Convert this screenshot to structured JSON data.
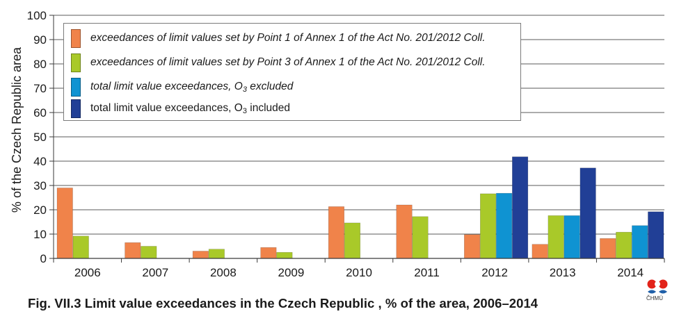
{
  "chart_data": {
    "type": "bar",
    "categories": [
      "2006",
      "2007",
      "2008",
      "2009",
      "2010",
      "2011",
      "2012",
      "2013",
      "2014"
    ],
    "ylabel": "% of the Czech Republic area",
    "ylim": [
      0,
      100
    ],
    "yticks": [
      0,
      10,
      20,
      30,
      40,
      50,
      60,
      70,
      80,
      90,
      100
    ],
    "grid": true,
    "legend_position": "top-left",
    "series": [
      {
        "name": "exceedances of limit values set by Point 1 of Annex 1 of the Act No. 201/2012 Coll.",
        "color": "#f0834a",
        "italic": true,
        "values": [
          29.0,
          6.5,
          3.0,
          4.5,
          21.3,
          22.0,
          9.8,
          5.8,
          8.2
        ]
      },
      {
        "name": "exceedances of limit values set by Point 3 of Annex 1 of the Act No. 201/2012 Coll.",
        "color": "#a9c929",
        "italic": true,
        "values": [
          9.2,
          5.0,
          3.8,
          2.5,
          14.6,
          17.2,
          26.6,
          17.6,
          10.8
        ]
      },
      {
        "name_prefix": "total limit value exceedances, O",
        "name_sub": "3",
        "name_suffix": " excluded",
        "color": "#0f93d2",
        "italic": true,
        "values": [
          0,
          0,
          0,
          0,
          0,
          0,
          26.8,
          17.6,
          13.5
        ]
      },
      {
        "name_prefix": "total limit value exceedances, O",
        "name_sub": "3",
        "name_suffix": " included",
        "color": "#213f96",
        "italic": false,
        "values": [
          0,
          0,
          0,
          0,
          0,
          0,
          41.8,
          37.2,
          19.2
        ]
      }
    ]
  },
  "caption": "Fig. VII.3  Limit value exceedances in the Czech Republic , % of the area, 2006–2014",
  "logo": {
    "text": "ČHMÚ",
    "colors": {
      "red": "#e2231a",
      "blue": "#1f5fa8"
    }
  }
}
